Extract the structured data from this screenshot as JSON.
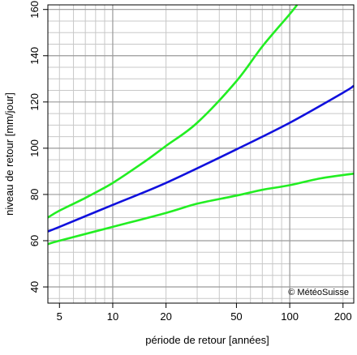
{
  "chart_data": {
    "type": "line",
    "title": "",
    "xlabel": "période de retour [années]",
    "ylabel": "niveau de retour [mm/jour]",
    "x_scale": "log",
    "xlim": [
      4.3,
      230
    ],
    "ylim": [
      33,
      162
    ],
    "x_ticks": [
      5,
      10,
      20,
      50,
      100,
      200
    ],
    "y_ticks": [
      40,
      60,
      80,
      100,
      120,
      140,
      160
    ],
    "grid": true,
    "annotation": "© MétéoSuisse",
    "series": [
      {
        "color": "#1010dd",
        "x": [
          4.3,
          5,
          10,
          20,
          50,
          100,
          200,
          230
        ],
        "y": [
          64,
          66,
          75.5,
          85,
          99.5,
          111,
          124,
          127
        ]
      },
      {
        "color": "#22ee22",
        "x": [
          4.3,
          5,
          7,
          10,
          15,
          20,
          30,
          50,
          70,
          100,
          110
        ],
        "y": [
          70,
          73,
          78.5,
          85,
          94,
          101,
          111,
          129,
          144,
          158,
          162
        ]
      },
      {
        "color": "#22ee22",
        "x": [
          4.3,
          5,
          10,
          20,
          30,
          50,
          70,
          100,
          150,
          230
        ],
        "y": [
          58.5,
          60,
          66,
          72,
          76,
          79.5,
          82,
          84,
          87,
          89
        ]
      }
    ]
  }
}
